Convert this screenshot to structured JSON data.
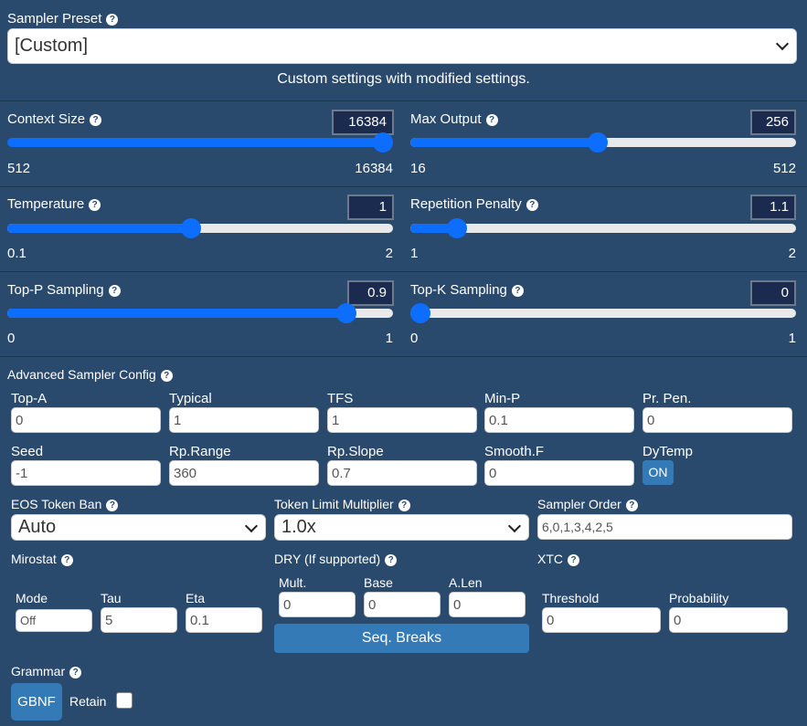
{
  "preset": {
    "label": "Sampler Preset",
    "value": "[Custom]",
    "description": "Custom settings with modified settings."
  },
  "sliders": {
    "context_size": {
      "label": "Context Size",
      "value": "16384",
      "min": "512",
      "max": "16384",
      "fraction": 1.0
    },
    "max_output": {
      "label": "Max Output",
      "value": "256",
      "min": "16",
      "max": "512",
      "fraction": 0.484
    },
    "temperature": {
      "label": "Temperature",
      "value": "1",
      "min": "0.1",
      "max": "2",
      "fraction": 0.474
    },
    "repetition_penalty": {
      "label": "Repetition Penalty",
      "value": "1.1",
      "min": "1",
      "max": "2",
      "fraction": 0.1
    },
    "top_p": {
      "label": "Top-P Sampling",
      "value": "0.9",
      "min": "0",
      "max": "1",
      "fraction": 0.9
    },
    "top_k": {
      "label": "Top-K Sampling",
      "value": "0",
      "min": "0",
      "max": "1",
      "fraction": 0.0
    }
  },
  "advanced": {
    "title": "Advanced Sampler Config",
    "top_a": {
      "label": "Top-A",
      "value": "0"
    },
    "typical": {
      "label": "Typical",
      "value": "1"
    },
    "tfs": {
      "label": "TFS",
      "value": "1"
    },
    "min_p": {
      "label": "Min-P",
      "value": "0.1"
    },
    "pr_pen": {
      "label": "Pr. Pen.",
      "value": "0"
    },
    "seed": {
      "label": "Seed",
      "value": "-1"
    },
    "rp_range": {
      "label": "Rp.Range",
      "value": "360"
    },
    "rp_slope": {
      "label": "Rp.Slope",
      "value": "0.7"
    },
    "smooth_f": {
      "label": "Smooth.F",
      "value": "0"
    },
    "dytemp": {
      "label": "DyTemp",
      "button": "ON"
    }
  },
  "eos": {
    "label": "EOS Token Ban",
    "value": "Auto"
  },
  "token_limit": {
    "label": "Token Limit Multiplier",
    "value": "1.0x"
  },
  "sampler_order": {
    "label": "Sampler Order",
    "value": "6,0,1,3,4,2,5"
  },
  "mirostat": {
    "title": "Mirostat",
    "mode": {
      "label": "Mode",
      "value": "Off"
    },
    "tau": {
      "label": "Tau",
      "value": "5"
    },
    "eta": {
      "label": "Eta",
      "value": "0.1"
    }
  },
  "dry": {
    "title": "DRY (If supported)",
    "mult": {
      "label": "Mult.",
      "value": "0"
    },
    "base": {
      "label": "Base",
      "value": "0"
    },
    "alen": {
      "label": "A.Len",
      "value": "0"
    },
    "seq_breaks": "Seq. Breaks"
  },
  "xtc": {
    "title": "XTC",
    "threshold": {
      "label": "Threshold",
      "value": "0"
    },
    "probability": {
      "label": "Probability",
      "value": "0"
    }
  },
  "grammar": {
    "title": "Grammar",
    "button": "GBNF",
    "retain": "Retain"
  },
  "icons": {
    "help": "question-circle-icon",
    "dropdown": "chevron-down-icon"
  },
  "colors": {
    "background": "#2a4a6d",
    "accent": "#0d6efd",
    "button": "#337ab7",
    "numbox": "#1b2a4f"
  }
}
